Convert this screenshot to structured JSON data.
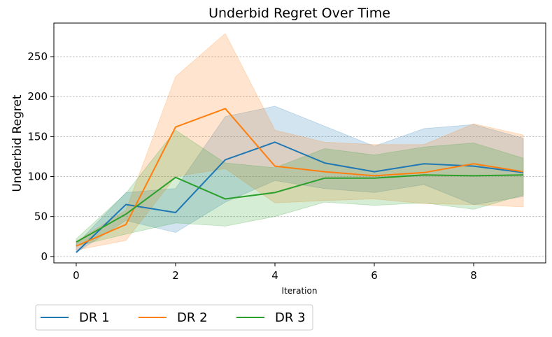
{
  "chart_data": {
    "type": "line",
    "title": "Underbid Regret Over Time",
    "xlabel": "Iteration",
    "ylabel": "Underbid Regret",
    "x": [
      0,
      1,
      2,
      3,
      4,
      5,
      6,
      7,
      8,
      9
    ],
    "xlim": [
      -0.45,
      9.45
    ],
    "ylim": [
      -8,
      292
    ],
    "xticks": [
      0,
      2,
      4,
      6,
      8
    ],
    "yticks": [
      0,
      50,
      100,
      150,
      200,
      250
    ],
    "grid": "y-dashed",
    "legend_position": "bottom-left-outside",
    "series": [
      {
        "name": "DR 1",
        "color": "#1f77b4",
        "values": [
          5,
          65,
          55,
          121,
          143,
          117,
          106,
          116,
          113,
          105
        ],
        "lower": [
          5,
          45,
          30,
          68,
          95,
          85,
          80,
          90,
          65,
          75
        ],
        "upper": [
          15,
          80,
          85,
          175,
          188,
          163,
          138,
          160,
          165,
          148
        ]
      },
      {
        "name": "DR 2",
        "color": "#ff7f0e",
        "values": [
          13,
          40,
          162,
          185,
          113,
          106,
          101,
          105,
          116,
          106
        ],
        "lower": [
          8,
          20,
          100,
          110,
          67,
          70,
          72,
          66,
          65,
          62
        ],
        "upper": [
          19,
          58,
          225,
          279,
          158,
          143,
          140,
          140,
          166,
          152
        ]
      },
      {
        "name": "DR 3",
        "color": "#2ca02c",
        "values": [
          18,
          53,
          99,
          72,
          80,
          98,
          98,
          102,
          101,
          102
        ],
        "lower": [
          13,
          28,
          42,
          38,
          50,
          68,
          64,
          67,
          59,
          77
        ],
        "upper": [
          22,
          79,
          158,
          117,
          111,
          135,
          127,
          137,
          142,
          123
        ]
      }
    ]
  }
}
